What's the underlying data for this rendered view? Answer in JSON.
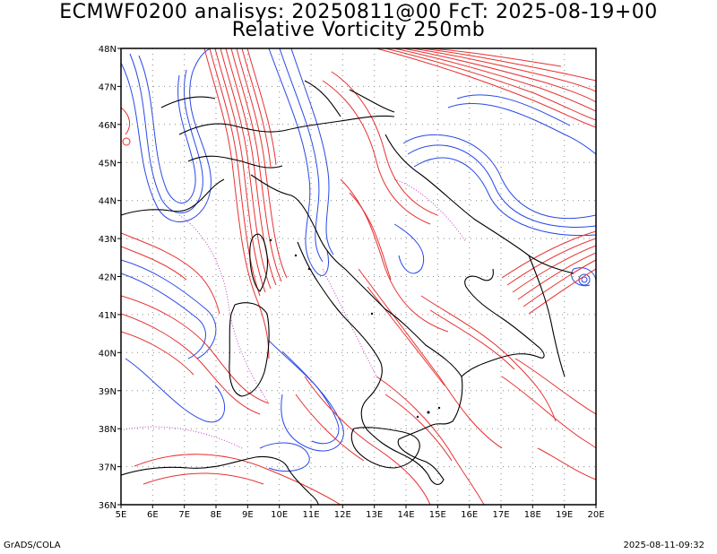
{
  "header": {
    "title_line1": "ECMWF0200 analisys: 20250811@00 FcT: 2025-08-19+00",
    "title_line2": "Relative Vorticity 250mb"
  },
  "map": {
    "lon_labels": [
      "5E",
      "6E",
      "7E",
      "8E",
      "9E",
      "10E",
      "11E",
      "12E",
      "13E",
      "14E",
      "15E",
      "16E",
      "17E",
      "18E",
      "19E",
      "20E"
    ],
    "lat_labels": [
      "48N",
      "47N",
      "46N",
      "45N",
      "44N",
      "43N",
      "42N",
      "41N",
      "40N",
      "39N",
      "38N",
      "37N",
      "36N"
    ],
    "colors": {
      "positive_vorticity": "#e83030",
      "negative_vorticity": "#2848e8",
      "zero_contour": "#c040c0",
      "coastline": "#000000",
      "grid": "#888888"
    }
  },
  "footer": {
    "left": "GrADS/COLA",
    "right": "2025-08-11-09:32"
  }
}
